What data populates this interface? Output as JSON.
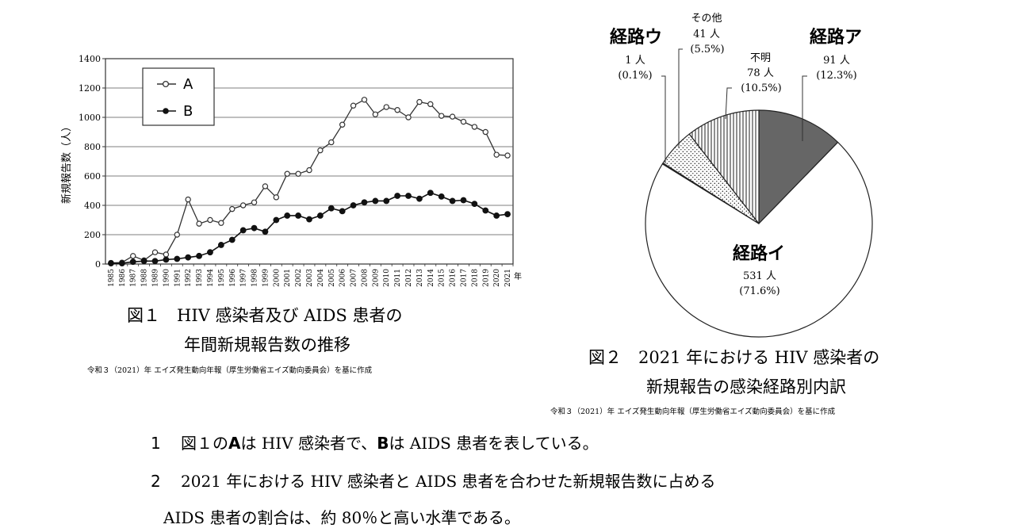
{
  "chart_data": [
    {
      "type": "line",
      "x": [
        1985,
        1986,
        1987,
        1988,
        1989,
        1990,
        1991,
        1992,
        1993,
        1994,
        1995,
        1996,
        1997,
        1998,
        1999,
        2000,
        2001,
        2002,
        2003,
        2004,
        2005,
        2006,
        2007,
        2008,
        2009,
        2010,
        2011,
        2012,
        2013,
        2014,
        2015,
        2016,
        2017,
        2018,
        2019,
        2020,
        2021
      ],
      "x_unit": "年",
      "ylim": [
        0,
        1400
      ],
      "yticks": [
        0,
        200,
        400,
        600,
        800,
        1000,
        1200,
        1400
      ],
      "ylabel": "新規報告数（人）",
      "grid": "horizontal",
      "legend_position": "top-left",
      "series": [
        {
          "name": "A",
          "marker": "open-circle",
          "values": [
            8,
            10,
            55,
            25,
            80,
            65,
            200,
            440,
            275,
            300,
            280,
            375,
            400,
            420,
            530,
            455,
            615,
            615,
            640,
            775,
            830,
            950,
            1080,
            1120,
            1020,
            1070,
            1050,
            1000,
            1105,
            1090,
            1010,
            1005,
            970,
            935,
            900,
            745,
            740
          ]
        },
        {
          "name": "B",
          "marker": "filled-circle",
          "values": [
            5,
            5,
            15,
            20,
            20,
            30,
            35,
            45,
            55,
            80,
            130,
            165,
            230,
            245,
            220,
            300,
            330,
            330,
            305,
            330,
            380,
            360,
            400,
            420,
            430,
            430,
            465,
            465,
            445,
            485,
            460,
            430,
            435,
            410,
            365,
            330,
            340
          ]
        }
      ],
      "caption_lines": [
        "図１　HIV 感染者及び AIDS 患者の",
        "年間新規報告数の推移"
      ],
      "source": "令和３（2021）年 エイズ発生動向年報（厚生労働省エイズ動向委員会）を基に作成"
    },
    {
      "type": "pie",
      "slices": [
        {
          "label": "経路ア",
          "value": 91,
          "count_text": "91 人",
          "pct_text": "(12.3%)",
          "color": "#666666",
          "pattern": "solid"
        },
        {
          "label": "経路イ",
          "value": 531,
          "count_text": "531 人",
          "pct_text": "(71.6%)",
          "color": "#ffffff",
          "pattern": "none"
        },
        {
          "label": "経路ウ",
          "value": 1,
          "count_text": "1 人",
          "pct_text": "(0.1%)",
          "color": "#ffffff",
          "pattern": "none"
        },
        {
          "label": "その他",
          "value": 41,
          "count_text": "41 人",
          "pct_text": "(5.5%)",
          "color": "#ffffff",
          "pattern": "dots"
        },
        {
          "label": "不明",
          "value": 78,
          "count_text": "78 人",
          "pct_text": "(10.5%)",
          "color": "#ffffff",
          "pattern": "vertical-lines"
        }
      ],
      "caption_lines": [
        "図２　2021 年における HIV 感染者の",
        "新規報告の感染経路別内訳"
      ],
      "source": "令和３（2021）年 エイズ発生動向年報（厚生労働省エイズ動向委員会）を基に作成"
    }
  ],
  "statements": [
    {
      "number": "1",
      "segments": [
        {
          "text": "図１の",
          "style": "serif"
        },
        {
          "text": "A",
          "style": "sans-bold"
        },
        {
          "text": "は HIV 感染者で、",
          "style": "serif"
        },
        {
          "text": "B",
          "style": "sans-bold"
        },
        {
          "text": "は AIDS 患者を表している。",
          "style": "serif"
        }
      ]
    },
    {
      "number": "2",
      "lines": [
        "2021 年における HIV 感染者と AIDS 患者を合わせた新規報告数に占める",
        "AIDS 患者の割合は、約 80％と高い水準である。"
      ]
    }
  ]
}
